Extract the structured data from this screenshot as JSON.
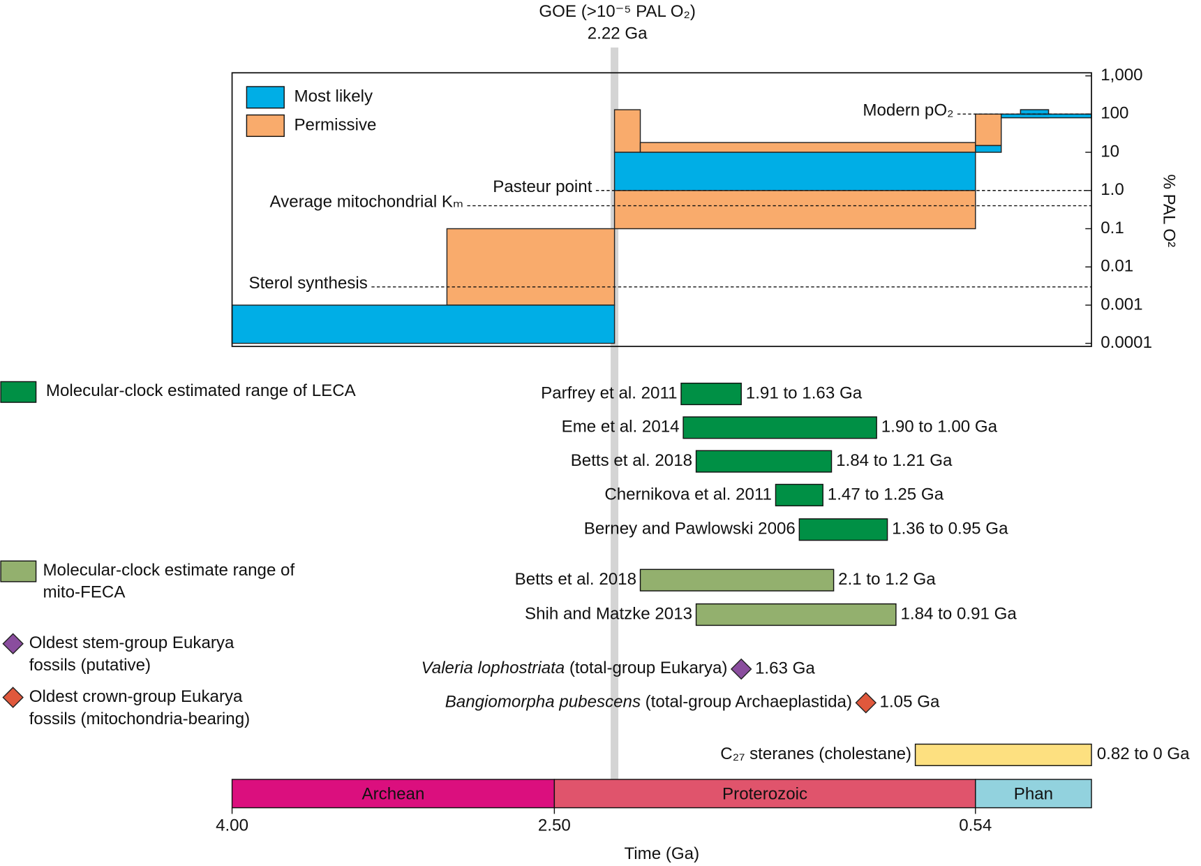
{
  "chart_data": {
    "type": "timeline",
    "xlabel": "Time (Ga)",
    "ylabel": "% PAL O²",
    "xlim": [
      4,
      0
    ],
    "xticks": [
      {
        "value": 4,
        "label": "4.00"
      },
      {
        "value": 2.5,
        "label": "2.50"
      },
      0.54
    ],
    "ylim": [
      0.0001,
      1000
    ],
    "yscale": "log",
    "yticks": [
      {
        "value": 1000,
        "label": "1,000"
      },
      100,
      10,
      {
        "value": 1,
        "label": "1.0"
      },
      0.1,
      0.01,
      0.001,
      0.0001
    ],
    "goe": {
      "label": "GOE (>10⁻⁵ PAL O₂)",
      "value": 2.22,
      "value_label": "2.22 Ga"
    },
    "oxygen_series": [
      {
        "name": "Most likely",
        "color": "#00aee6",
        "boxes": [
          {
            "start": 4,
            "end": 2.22,
            "low": 0.0001,
            "high": 0.001
          },
          {
            "start": 2.22,
            "end": 0.54,
            "low": 1,
            "high": 10
          },
          {
            "start": 0.54,
            "end": 0.42,
            "low": 10,
            "high": 15
          },
          {
            "start": 0.42,
            "end": 0,
            "low": 80,
            "high": 100
          },
          {
            "start": 0.33,
            "end": 0.2,
            "low": 100,
            "high": 130
          }
        ]
      },
      {
        "name": "Permissive",
        "color": "#f9ab6c",
        "boxes": [
          {
            "start": 3,
            "end": 2.22,
            "low": 0.001,
            "high": 0.1
          },
          {
            "start": 2.22,
            "end": 0.54,
            "low": 0.1,
            "high": 1
          },
          {
            "start": 2.22,
            "end": 2.1,
            "low": 10,
            "high": 130
          },
          {
            "start": 2.1,
            "end": 0.54,
            "low": 10,
            "high": 18
          },
          {
            "start": 0.54,
            "end": 0.42,
            "low": 15,
            "high": 100
          },
          {
            "start": 0.33,
            "end": 0.2,
            "low": 80,
            "high": 100
          }
        ]
      }
    ],
    "reference_lines": [
      {
        "label": "Modern pO₂",
        "value": 100
      },
      {
        "label": "Pasteur point",
        "value": 1
      },
      {
        "label": "Average mitochondrial Kₘ",
        "value": 0.4
      },
      {
        "label": "Sterol synthesis",
        "value": 0.003
      }
    ],
    "eras": [
      {
        "name": "Archean",
        "start": 4,
        "end": 2.5,
        "color": "#db0f7e"
      },
      {
        "name": "Proterozoic",
        "start": 2.5,
        "end": 0.54,
        "color": "#e0546c"
      },
      {
        "name": "Phan",
        "start": 0.54,
        "end": 0,
        "color": "#92d2de"
      }
    ],
    "estimate_groups": [
      {
        "label": [
          "Molecular-clock estimated range of LECA"
        ],
        "color": "#009045",
        "estimates": [
          {
            "name": "Parfrey et al. 2011",
            "start": 1.91,
            "end": 1.63,
            "value_label": "1.91 to 1.63 Ga"
          },
          {
            "name": "Eme et al. 2014",
            "start": 1.9,
            "end": 1.0,
            "value_label": "1.90 to 1.00 Ga"
          },
          {
            "name": "Betts et al. 2018",
            "start": 1.84,
            "end": 1.21,
            "value_label": "1.84 to 1.21 Ga"
          },
          {
            "name": "Chernikova et al. 2011",
            "start": 1.47,
            "end": 1.25,
            "value_label": "1.47 to 1.25 Ga"
          },
          {
            "name": "Berney and Pawlowski 2006",
            "start": 1.36,
            "end": 0.95,
            "value_label": "1.36 to 0.95 Ga"
          }
        ]
      },
      {
        "label": [
          "Molecular-clock estimate range of",
          "mito-FECA"
        ],
        "color": "#93b06e",
        "estimates": [
          {
            "name": "Betts et al. 2018",
            "start": 2.1,
            "end": 1.2,
            "value_label": "2.1 to 1.2 Ga"
          },
          {
            "name": "Shih and Matzke 2013",
            "start": 1.84,
            "end": 0.91,
            "value_label": "1.84 to 0.91 Ga"
          }
        ]
      }
    ],
    "fossil_groups": [
      {
        "label": [
          "Oldest stem-group Eukarya",
          "fossils (putative)"
        ],
        "color": "#8a4d9e",
        "fossils": [
          {
            "taxon": "Valeria lophostriata",
            "group": "(total-group Eukarya)",
            "value": 1.63,
            "value_label": "1.63 Ga"
          }
        ]
      },
      {
        "label": [
          "Oldest crown-group Eukarya",
          "fossils (mitochondria-bearing)"
        ],
        "color": "#e0583c",
        "fossils": [
          {
            "taxon": "Bangiomorpha pubescens",
            "group": "(total-group Archaeplastida)",
            "value": 1.05,
            "value_label": "1.05 Ga"
          }
        ]
      }
    ],
    "steranes": {
      "name": "C₂₇ steranes (cholestane)",
      "start": 0.82,
      "end": 0,
      "value_label": "0.82 to 0 Ga",
      "color": "#fde080"
    }
  }
}
